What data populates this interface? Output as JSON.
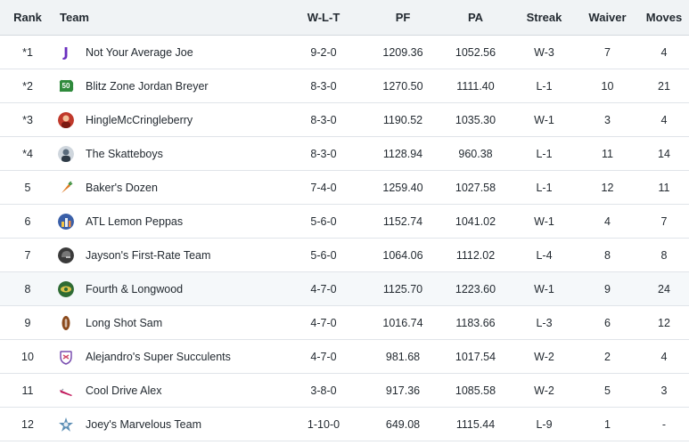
{
  "headers": {
    "rank": "Rank",
    "team": "Team",
    "wlt": "W-L-T",
    "pf": "PF",
    "pa": "PA",
    "streak": "Streak",
    "waiver": "Waiver",
    "moves": "Moves"
  },
  "rows": [
    {
      "rank": "*1",
      "team": "Not Your Average Joe",
      "wlt": "9-2-0",
      "pf": "1209.36",
      "pa": "1052.56",
      "streak": "W-3",
      "waiver": "7",
      "moves": "4",
      "logo": "letter-j-logo-icon",
      "logo_text": "J",
      "logo_color": "#6a2fbf"
    },
    {
      "rank": "*2",
      "team": "Blitz Zone Jordan Breyer",
      "wlt": "8-3-0",
      "pf": "1270.50",
      "pa": "1111.40",
      "streak": "L-1",
      "waiver": "10",
      "moves": "21",
      "logo": "yard-marker-logo-icon",
      "logo_text": "50",
      "logo_color": "#2f8a3c"
    },
    {
      "rank": "*3",
      "team": "HingleMcCringleberry",
      "wlt": "8-3-0",
      "pf": "1190.52",
      "pa": "1035.30",
      "streak": "W-1",
      "waiver": "3",
      "moves": "4",
      "logo": "avatar-red-logo-icon",
      "logo_color": "#c0392b"
    },
    {
      "rank": "*4",
      "team": "The Skatteboys",
      "wlt": "8-3-0",
      "pf": "1128.94",
      "pa": "960.38",
      "streak": "L-1",
      "waiver": "11",
      "moves": "14",
      "logo": "avatar-photo-logo-icon",
      "logo_color": "#5a6b7c"
    },
    {
      "rank": "5",
      "team": "Baker's Dozen",
      "wlt": "7-4-0",
      "pf": "1259.40",
      "pa": "1027.58",
      "streak": "L-1",
      "waiver": "12",
      "moves": "11",
      "logo": "carrot-logo-icon",
      "logo_color": "#e07b24"
    },
    {
      "rank": "6",
      "team": "ATL Lemon Peppas",
      "wlt": "5-6-0",
      "pf": "1152.74",
      "pa": "1041.02",
      "streak": "W-1",
      "waiver": "4",
      "moves": "7",
      "logo": "city-skyline-logo-icon",
      "logo_color": "#3a5fa8"
    },
    {
      "rank": "7",
      "team": "Jayson's First-Rate Team",
      "wlt": "5-6-0",
      "pf": "1064.06",
      "pa": "1112.02",
      "streak": "L-4",
      "waiver": "8",
      "moves": "8",
      "logo": "helmet-dark-logo-icon",
      "logo_color": "#3a3a3a"
    },
    {
      "rank": "8",
      "team": "Fourth & Longwood",
      "wlt": "4-7-0",
      "pf": "1125.70",
      "pa": "1223.60",
      "streak": "W-1",
      "waiver": "9",
      "moves": "24",
      "logo": "green-team-logo-icon",
      "logo_color": "#2e6b33",
      "highlight": true
    },
    {
      "rank": "9",
      "team": "Long Shot Sam",
      "wlt": "4-7-0",
      "pf": "1016.74",
      "pa": "1183.66",
      "streak": "L-3",
      "waiver": "6",
      "moves": "12",
      "logo": "football-logo-icon",
      "logo_color": "#8b4a1c"
    },
    {
      "rank": "10",
      "team": "Alejandro's Super Succulents",
      "wlt": "4-7-0",
      "pf": "981.68",
      "pa": "1017.54",
      "streak": "W-2",
      "waiver": "2",
      "moves": "4",
      "logo": "shield-crest-logo-icon",
      "logo_color": "#7a4fb0"
    },
    {
      "rank": "11",
      "team": "Cool Drive Alex",
      "wlt": "3-8-0",
      "pf": "917.36",
      "pa": "1085.58",
      "streak": "W-2",
      "waiver": "5",
      "moves": "3",
      "logo": "cleat-logo-icon",
      "logo_color": "#c2185b"
    },
    {
      "rank": "12",
      "team": "Joey's Marvelous Team",
      "wlt": "1-10-0",
      "pf": "649.08",
      "pa": "1115.44",
      "streak": "L-9",
      "waiver": "1",
      "moves": "-",
      "logo": "star-badge-logo-icon",
      "logo_color": "#5d8fb5"
    }
  ]
}
